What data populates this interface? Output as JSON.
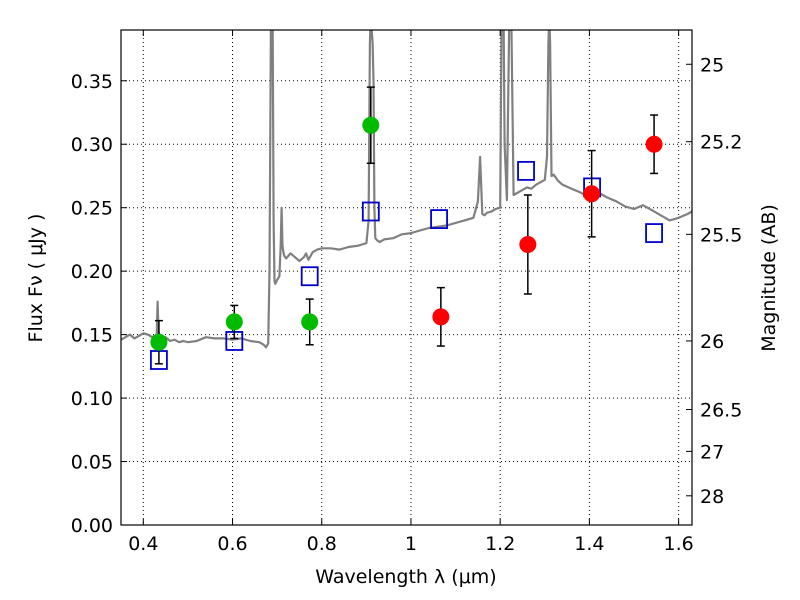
{
  "chart_data": {
    "type": "scatter",
    "xlabel": "Wavelength  λ (μm)",
    "ylabel": "Flux  Fν  ( μJy )",
    "y2label": "Magnitude (AB)",
    "xlim": [
      0.35,
      1.63
    ],
    "ylim": [
      0.0,
      0.39
    ],
    "xticks": [
      0.4,
      0.6,
      0.8,
      1.0,
      1.2,
      1.4,
      1.6
    ],
    "xtick_labels": [
      "0.4",
      "0.6",
      "0.8",
      "1",
      "1.2",
      "1.4",
      "1.6"
    ],
    "yticks": [
      0.0,
      0.05,
      0.1,
      0.15,
      0.2,
      0.25,
      0.3,
      0.35
    ],
    "ytick_labels": [
      "0.00",
      "0.05",
      "0.10",
      "0.15",
      "0.20",
      "0.25",
      "0.30",
      "0.35"
    ],
    "y2ticks": [
      {
        "label": "25",
        "flux": 0.363
      },
      {
        "label": "25.2",
        "flux": 0.302
      },
      {
        "label": "25.5",
        "flux": 0.229
      },
      {
        "label": "26",
        "flux": 0.145
      },
      {
        "label": "26.5",
        "flux": 0.091
      },
      {
        "label": "27",
        "flux": 0.058
      },
      {
        "label": "28",
        "flux": 0.023
      }
    ],
    "grid": true,
    "colors": {
      "spectrum": "#808080",
      "green_points": "#00bb00",
      "red_points": "#ff0000",
      "model_squares": "#0000cc",
      "errorbars": "#000000"
    },
    "series": [
      {
        "type": "line",
        "x": [
          0.35,
          0.36,
          0.37,
          0.38,
          0.39,
          0.4,
          0.41,
          0.42,
          0.43,
          0.432,
          0.434,
          0.436,
          0.44,
          0.45,
          0.46,
          0.47,
          0.48,
          0.49,
          0.5,
          0.52,
          0.54,
          0.56,
          0.58,
          0.6,
          0.62,
          0.64,
          0.66,
          0.67,
          0.675,
          0.68,
          0.683,
          0.686,
          0.688,
          0.69,
          0.692,
          0.694,
          0.696,
          0.7,
          0.705,
          0.708,
          0.71,
          0.712,
          0.714,
          0.716,
          0.72,
          0.73,
          0.74,
          0.75,
          0.76,
          0.765,
          0.77,
          0.775,
          0.78,
          0.79,
          0.8,
          0.82,
          0.84,
          0.86,
          0.88,
          0.89,
          0.9,
          0.905,
          0.908,
          0.91,
          0.912,
          0.914,
          0.916,
          0.918,
          0.92,
          0.925,
          0.93,
          0.94,
          0.96,
          0.98,
          1.0,
          1.02,
          1.04,
          1.06,
          1.08,
          1.1,
          1.12,
          1.14,
          1.15,
          1.155,
          1.16,
          1.165,
          1.17,
          1.18,
          1.19,
          1.2,
          1.203,
          1.206,
          1.208,
          1.21,
          1.215,
          1.22,
          1.225,
          1.23,
          1.24,
          1.25,
          1.26,
          1.27,
          1.28,
          1.29,
          1.3,
          1.305,
          1.308,
          1.31,
          1.312,
          1.315,
          1.32,
          1.33,
          1.34,
          1.36,
          1.38,
          1.4,
          1.42,
          1.44,
          1.46,
          1.48,
          1.5,
          1.52,
          1.54,
          1.56,
          1.58,
          1.6,
          1.62,
          1.63
        ],
        "y": [
          0.146,
          0.148,
          0.15,
          0.147,
          0.149,
          0.151,
          0.15,
          0.148,
          0.15,
          0.176,
          0.152,
          0.15,
          0.147,
          0.148,
          0.145,
          0.146,
          0.144,
          0.145,
          0.144,
          0.145,
          0.148,
          0.147,
          0.147,
          0.146,
          0.147,
          0.145,
          0.144,
          0.142,
          0.14,
          0.143,
          0.2,
          0.39,
          0.4,
          0.39,
          0.24,
          0.192,
          0.19,
          0.193,
          0.196,
          0.22,
          0.25,
          0.22,
          0.215,
          0.212,
          0.21,
          0.214,
          0.211,
          0.208,
          0.211,
          0.214,
          0.209,
          0.212,
          0.215,
          0.217,
          0.218,
          0.218,
          0.217,
          0.219,
          0.22,
          0.221,
          0.222,
          0.24,
          0.38,
          0.4,
          0.39,
          0.38,
          0.35,
          0.25,
          0.226,
          0.224,
          0.223,
          0.225,
          0.226,
          0.229,
          0.23,
          0.232,
          0.234,
          0.235,
          0.236,
          0.238,
          0.24,
          0.242,
          0.255,
          0.29,
          0.245,
          0.244,
          0.246,
          0.247,
          0.249,
          0.25,
          0.39,
          0.4,
          0.39,
          0.3,
          0.256,
          0.39,
          0.4,
          0.26,
          0.262,
          0.264,
          0.266,
          0.265,
          0.268,
          0.27,
          0.272,
          0.29,
          0.38,
          0.4,
          0.38,
          0.275,
          0.276,
          0.271,
          0.268,
          0.265,
          0.262,
          0.258,
          0.262,
          0.258,
          0.255,
          0.251,
          0.249,
          0.252,
          0.248,
          0.244,
          0.24,
          0.242,
          0.245,
          0.247
        ]
      },
      {
        "type": "square",
        "x": [
          0.435,
          0.604,
          0.773,
          0.91,
          1.063,
          1.258,
          1.406,
          1.545
        ],
        "y": [
          0.13,
          0.145,
          0.196,
          0.247,
          0.241,
          0.279,
          0.266,
          0.23
        ]
      },
      {
        "type": "errorbar",
        "x": [
          0.435,
          0.604,
          0.773,
          0.91
        ],
        "y": [
          0.144,
          0.16,
          0.16,
          0.315
        ],
        "yerr": [
          0.017,
          0.013,
          0.018,
          0.03
        ]
      },
      {
        "type": "errorbar",
        "x": [
          1.067,
          1.262,
          1.405,
          1.545
        ],
        "y": [
          0.164,
          0.221,
          0.261,
          0.3
        ],
        "yerr": [
          0.023,
          0.039,
          0.034,
          0.023
        ]
      }
    ]
  }
}
